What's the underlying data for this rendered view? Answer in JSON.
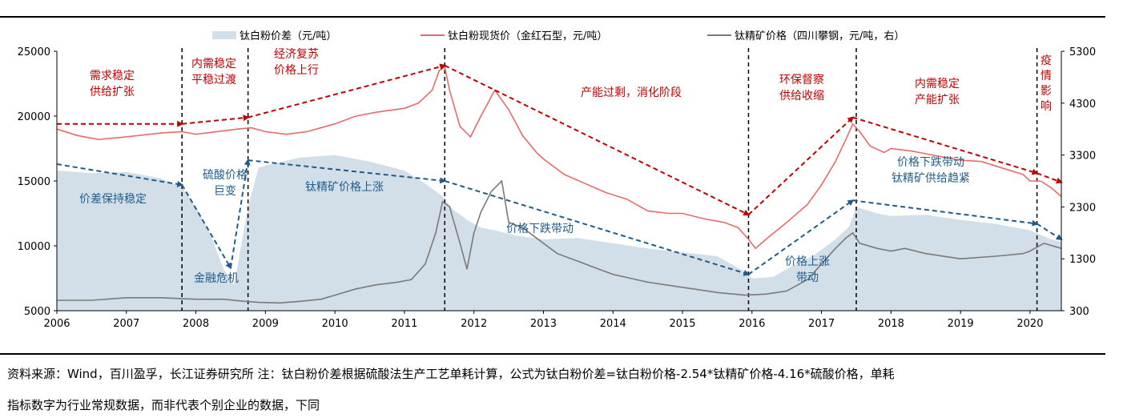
{
  "chart_data": {
    "type": "area+line",
    "title": "",
    "legend": {
      "placement": "top",
      "entries": [
        {
          "label": "钛白粉价差（元/吨）",
          "kind": "area",
          "color": "#d3dfe8"
        },
        {
          "label": "钛白粉现货价（金红石型，元/吨）",
          "kind": "line",
          "color": "#e86a6a"
        },
        {
          "label": "钛精矿价格（四川攀钢，元/吨，右）",
          "kind": "line",
          "color": "#7a7a7a"
        }
      ]
    },
    "x_axis": {
      "type": "time",
      "range": [
        2006.0,
        2020.45
      ],
      "tick_labels": [
        "2006",
        "2007",
        "2008",
        "2009",
        "2010",
        "2011",
        "2012",
        "2013",
        "2014",
        "2015",
        "2016",
        "2017",
        "2018",
        "2019",
        "2020"
      ]
    },
    "y_left": {
      "range": [
        5000,
        25000
      ],
      "ticks": [
        5000,
        10000,
        15000,
        20000,
        25000
      ]
    },
    "y_right": {
      "range": [
        300,
        5300
      ],
      "ticks": [
        300,
        1300,
        2300,
        3300,
        4300,
        5300
      ]
    },
    "grid": false,
    "series": [
      {
        "name": "钛白粉价差（元/吨）",
        "axis": "left",
        "type": "area",
        "color": "#d3dfe8",
        "x": [
          2006.0,
          2006.5,
          2007.0,
          2007.5,
          2007.8,
          2008.0,
          2008.2,
          2008.4,
          2008.55,
          2008.75,
          2008.9,
          2009.0,
          2009.5,
          2010.0,
          2010.5,
          2011.0,
          2011.3,
          2011.55,
          2011.7,
          2011.9,
          2012.1,
          2012.3,
          2012.6,
          2013.0,
          2013.5,
          2014.0,
          2014.5,
          2015.0,
          2015.5,
          2015.9,
          2016.0,
          2016.3,
          2016.6,
          2016.9,
          2017.2,
          2017.4,
          2017.5,
          2017.8,
          2018.0,
          2018.5,
          2019.0,
          2019.5,
          2020.0,
          2020.3,
          2020.45
        ],
        "values": [
          15800,
          15600,
          15700,
          15200,
          14500,
          13000,
          11000,
          8200,
          7000,
          13000,
          16000,
          16200,
          16800,
          17000,
          16500,
          15800,
          14800,
          13800,
          12800,
          12000,
          11400,
          11200,
          10800,
          10500,
          10600,
          10200,
          9800,
          9500,
          9200,
          8000,
          7500,
          7600,
          8500,
          9300,
          10500,
          11500,
          13000,
          12500,
          12300,
          12400,
          12000,
          11700,
          11200,
          10500,
          10300
        ]
      },
      {
        "name": "钛白粉现货价（金红石型，元/吨）",
        "axis": "left",
        "type": "line",
        "color": "#e86a6a",
        "x": [
          2006.0,
          2006.3,
          2006.6,
          2007.0,
          2007.5,
          2007.8,
          2008.0,
          2008.3,
          2008.6,
          2008.8,
          2009.0,
          2009.3,
          2009.6,
          2010.0,
          2010.3,
          2010.6,
          2011.0,
          2011.2,
          2011.4,
          2011.5,
          2011.58,
          2011.65,
          2011.8,
          2011.95,
          2012.1,
          2012.3,
          2012.5,
          2012.7,
          2012.9,
          2013.0,
          2013.3,
          2013.6,
          2013.9,
          2014.2,
          2014.5,
          2014.8,
          2015.0,
          2015.3,
          2015.6,
          2015.8,
          2015.95,
          2016.05,
          2016.2,
          2016.5,
          2016.8,
          2017.0,
          2017.2,
          2017.35,
          2017.45,
          2017.55,
          2017.7,
          2017.9,
          2018.0,
          2018.3,
          2018.6,
          2018.9,
          2019.0,
          2019.3,
          2019.6,
          2019.9,
          2020.0,
          2020.15,
          2020.3,
          2020.45
        ],
        "values": [
          19000,
          18500,
          18200,
          18400,
          18700,
          18800,
          18600,
          18800,
          19000,
          19100,
          18800,
          18600,
          18800,
          19400,
          20000,
          20300,
          20600,
          21000,
          22000,
          23500,
          23800,
          22000,
          19200,
          18400,
          20000,
          22000,
          20500,
          18500,
          17200,
          16700,
          15500,
          14800,
          14100,
          13600,
          12700,
          12500,
          12500,
          12100,
          11800,
          11400,
          10500,
          9800,
          10500,
          11800,
          13200,
          14700,
          16500,
          18200,
          19400,
          18800,
          17700,
          17200,
          17500,
          17300,
          17000,
          16700,
          16600,
          16500,
          16000,
          15500,
          15000,
          15000,
          14500,
          13800
        ]
      },
      {
        "name": "钛精矿价格（四川攀钢，元/吨，右）",
        "axis": "right",
        "type": "line",
        "color": "#7a7a7a",
        "x": [
          2006.0,
          2006.5,
          2007.0,
          2007.5,
          2008.0,
          2008.4,
          2008.7,
          2008.9,
          2009.2,
          2009.5,
          2009.8,
          2010.0,
          2010.3,
          2010.6,
          2010.9,
          2011.1,
          2011.3,
          2011.45,
          2011.55,
          2011.65,
          2011.8,
          2011.9,
          2012.0,
          2012.1,
          2012.25,
          2012.4,
          2012.5,
          2012.7,
          2012.9,
          2013.0,
          2013.2,
          2013.5,
          2013.8,
          2014.0,
          2014.5,
          2015.0,
          2015.5,
          2015.9,
          2016.2,
          2016.5,
          2016.8,
          2017.0,
          2017.2,
          2017.35,
          2017.45,
          2017.55,
          2017.8,
          2018.0,
          2018.2,
          2018.5,
          2019.0,
          2019.5,
          2019.9,
          2020.0,
          2020.2,
          2020.45
        ],
        "values": [
          500,
          500,
          550,
          550,
          520,
          520,
          480,
          460,
          450,
          480,
          520,
          600,
          720,
          800,
          850,
          900,
          1200,
          1800,
          2400,
          2300,
          1600,
          1100,
          1800,
          2200,
          2600,
          2800,
          2000,
          1900,
          1700,
          1600,
          1400,
          1250,
          1100,
          1000,
          850,
          750,
          650,
          600,
          620,
          680,
          900,
          1200,
          1500,
          1700,
          1800,
          1600,
          1500,
          1450,
          1500,
          1400,
          1300,
          1350,
          1400,
          1450,
          1600,
          1500
        ]
      }
    ],
    "annotations": {
      "phases": [
        {
          "lines": [
            "需求稳定",
            "供给扩张"
          ]
        },
        {
          "lines": [
            "内需稳定",
            "平稳过渡"
          ]
        },
        {
          "lines": [
            "经济复苏",
            "价格上行"
          ]
        },
        {
          "lines": [
            "产能过剩，消化阶段"
          ]
        },
        {
          "lines": [
            "环保督察",
            "供给收缩"
          ]
        },
        {
          "lines": [
            "内需稳定",
            "产能扩张"
          ]
        },
        {
          "lines": [
            "疫",
            "情",
            "影",
            "响"
          ]
        }
      ],
      "spread_notes": [
        {
          "lines": [
            "价差保持稳定"
          ]
        },
        {
          "lines": [
            "硫酸价格",
            "巨变"
          ]
        },
        {
          "lines": [
            "金融危机"
          ]
        },
        {
          "lines": [
            "钛精矿价格上涨"
          ]
        },
        {
          "lines": [
            "价格下跌带动"
          ]
        },
        {
          "lines": [
            "价格上涨",
            "带动"
          ]
        },
        {
          "lines": [
            "价格下跌带动",
            "钛精矿供给趋紧"
          ]
        }
      ],
      "phase_dividers_x": [
        2007.8,
        2008.75,
        2011.58,
        2015.95,
        2017.5,
        2020.1
      ],
      "red_trend": {
        "x": [
          2006.0,
          2007.8,
          2008.75,
          2011.58,
          2015.95,
          2017.45,
          2020.1,
          2020.45
        ],
        "values": [
          19400,
          19400,
          19900,
          23900,
          12400,
          19900,
          15600,
          14900
        ]
      },
      "blue_trend": {
        "x": [
          2006.0,
          2007.8,
          2008.5,
          2008.75,
          2011.58,
          2015.95,
          2017.45,
          2020.1,
          2020.45
        ],
        "values": [
          16300,
          14700,
          8300,
          16600,
          15000,
          7800,
          13500,
          11700,
          10500
        ]
      }
    }
  },
  "source": {
    "line1": "资料来源：Wind，百川盈孚，长江证券研究所  注：钛白粉价差根据硫酸法生产工艺单耗计算，公式为钛白粉价差=钛白粉价格-2.54*钛精矿价格-4.16*硫酸价格，单耗",
    "line2": "指标数字为行业常规数据，而非代表个别企业的数据，下同"
  }
}
